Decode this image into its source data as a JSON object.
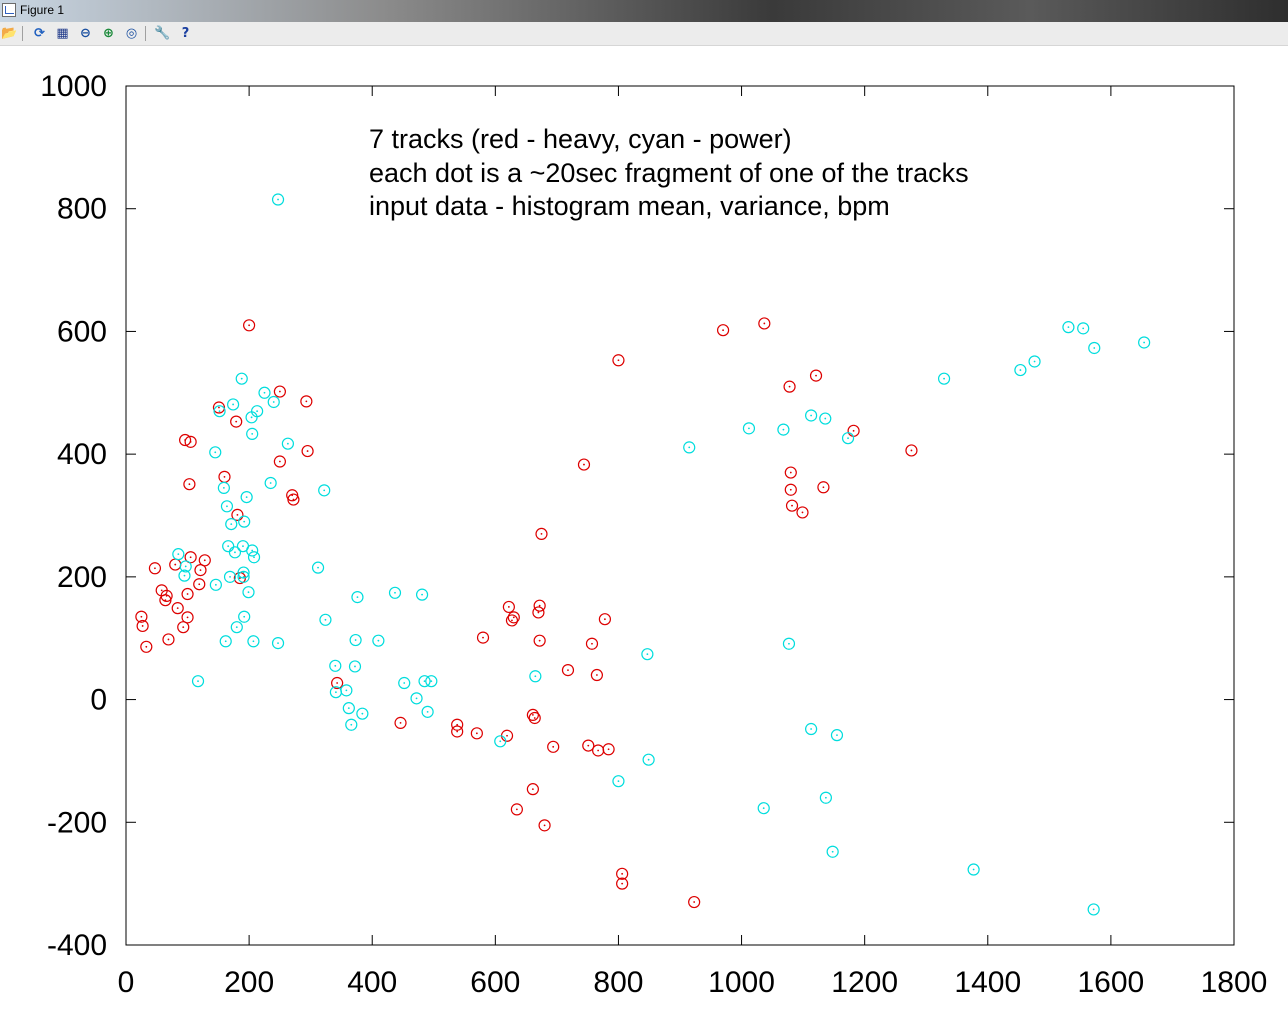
{
  "window": {
    "title": "Figure 1"
  },
  "toolbar": {
    "buttons": [
      {
        "name": "open-folder-icon",
        "glyph": "📂"
      },
      {
        "name": "rotate-icon",
        "glyph": "⟳"
      },
      {
        "name": "grid-icon",
        "glyph": "▦"
      },
      {
        "name": "zoom-out-icon",
        "glyph": "⊖"
      },
      {
        "name": "zoom-in-icon",
        "glyph": "⊕"
      },
      {
        "name": "zoom-fit-icon",
        "glyph": "◎"
      },
      {
        "name": "settings-wrench-icon",
        "glyph": "🔧"
      },
      {
        "name": "help-icon",
        "glyph": "?"
      }
    ]
  },
  "colors": {
    "heavy": "#dd0000",
    "power": "#00dddd",
    "axis": "#000000"
  },
  "chart_data": {
    "type": "scatter",
    "xlim": [
      0,
      1800
    ],
    "ylim": [
      -400,
      1000
    ],
    "xticks": [
      0,
      200,
      400,
      600,
      800,
      1000,
      1200,
      1400,
      1600,
      1800
    ],
    "yticks": [
      -400,
      -200,
      0,
      200,
      400,
      600,
      800,
      1000
    ],
    "xlabel": "",
    "ylabel": "",
    "grid": false,
    "annotation": [
      "7 tracks (red - heavy, cyan - power)",
      "each dot is a ~20sec fragment of one of the tracks",
      "input data - histogram mean, variance, bpm"
    ],
    "series": [
      {
        "color": "#dd0000",
        "points": [
          [
            25,
            135
          ],
          [
            27,
            120
          ],
          [
            33,
            86
          ],
          [
            47,
            214
          ],
          [
            58,
            178
          ],
          [
            64,
            162
          ],
          [
            66,
            169
          ],
          [
            69,
            98
          ],
          [
            80,
            220
          ],
          [
            84,
            149
          ],
          [
            93,
            118
          ],
          [
            96,
            423
          ],
          [
            100,
            134
          ],
          [
            100,
            172
          ],
          [
            103,
            351
          ],
          [
            105,
            420
          ],
          [
            105,
            232
          ],
          [
            119,
            188
          ],
          [
            121,
            211
          ],
          [
            128,
            227
          ],
          [
            151,
            476
          ],
          [
            160,
            363
          ],
          [
            179,
            453
          ],
          [
            181,
            301
          ],
          [
            185,
            198
          ],
          [
            200,
            610
          ],
          [
            250,
            502
          ],
          [
            250,
            388
          ],
          [
            270,
            333
          ],
          [
            272,
            326
          ],
          [
            293,
            486
          ],
          [
            295,
            405
          ],
          [
            343,
            27
          ],
          [
            446,
            -38
          ],
          [
            538,
            -41
          ],
          [
            538,
            -52
          ],
          [
            570,
            -55
          ],
          [
            580,
            101
          ],
          [
            619,
            -59
          ],
          [
            622,
            151
          ],
          [
            627,
            129
          ],
          [
            630,
            134
          ],
          [
            635,
            -179
          ],
          [
            661,
            -146
          ],
          [
            661,
            -25
          ],
          [
            664,
            -30
          ],
          [
            670,
            142
          ],
          [
            672,
            153
          ],
          [
            672,
            96
          ],
          [
            675,
            270
          ],
          [
            680,
            -205
          ],
          [
            694,
            -77
          ],
          [
            718,
            48
          ],
          [
            744,
            383
          ],
          [
            751,
            -75
          ],
          [
            757,
            91
          ],
          [
            765,
            40
          ],
          [
            767,
            -83
          ],
          [
            778,
            131
          ],
          [
            784,
            -81
          ],
          [
            800,
            553
          ],
          [
            806,
            -284
          ],
          [
            806,
            -300
          ],
          [
            923,
            -330
          ],
          [
            970,
            602
          ],
          [
            1037,
            613
          ],
          [
            1078,
            510
          ],
          [
            1080,
            370
          ],
          [
            1080,
            342
          ],
          [
            1082,
            316
          ],
          [
            1099,
            305
          ],
          [
            1121,
            528
          ],
          [
            1133,
            346
          ],
          [
            1182,
            438
          ],
          [
            1276,
            406
          ]
        ]
      },
      {
        "color": "#00dddd",
        "points": [
          [
            85,
            237
          ],
          [
            95,
            202
          ],
          [
            97,
            217
          ],
          [
            117,
            30
          ],
          [
            145,
            403
          ],
          [
            146,
            187
          ],
          [
            152,
            470
          ],
          [
            159,
            345
          ],
          [
            162,
            95
          ],
          [
            164,
            315
          ],
          [
            166,
            250
          ],
          [
            169,
            200
          ],
          [
            171,
            286
          ],
          [
            174,
            481
          ],
          [
            177,
            240
          ],
          [
            180,
            118
          ],
          [
            188,
            523
          ],
          [
            190,
            250
          ],
          [
            191,
            207
          ],
          [
            191,
            200
          ],
          [
            192,
            135
          ],
          [
            192,
            290
          ],
          [
            196,
            330
          ],
          [
            199,
            175
          ],
          [
            204,
            460
          ],
          [
            205,
            433
          ],
          [
            205,
            243
          ],
          [
            207,
            95
          ],
          [
            208,
            232
          ],
          [
            213,
            470
          ],
          [
            225,
            500
          ],
          [
            235,
            353
          ],
          [
            240,
            485
          ],
          [
            247,
            815
          ],
          [
            247,
            92
          ],
          [
            263,
            417
          ],
          [
            322,
            341
          ],
          [
            312,
            215
          ],
          [
            324,
            130
          ],
          [
            340,
            55
          ],
          [
            341,
            12
          ],
          [
            358,
            15
          ],
          [
            362,
            -14
          ],
          [
            366,
            -41
          ],
          [
            372,
            54
          ],
          [
            373,
            97
          ],
          [
            376,
            167
          ],
          [
            384,
            -23
          ],
          [
            410,
            96
          ],
          [
            437,
            174
          ],
          [
            452,
            27
          ],
          [
            472,
            2
          ],
          [
            481,
            171
          ],
          [
            485,
            30
          ],
          [
            490,
            -20
          ],
          [
            496,
            30
          ],
          [
            608,
            -68
          ],
          [
            665,
            38
          ],
          [
            800,
            -133
          ],
          [
            847,
            74
          ],
          [
            849,
            -98
          ],
          [
            915,
            411
          ],
          [
            1012,
            442
          ],
          [
            1036,
            -177
          ],
          [
            1068,
            440
          ],
          [
            1077,
            91
          ],
          [
            1113,
            463
          ],
          [
            1113,
            -48
          ],
          [
            1136,
            458
          ],
          [
            1137,
            -160
          ],
          [
            1148,
            -248
          ],
          [
            1155,
            -58
          ],
          [
            1173,
            426
          ],
          [
            1329,
            523
          ],
          [
            1377,
            -277
          ],
          [
            1453,
            537
          ],
          [
            1476,
            551
          ],
          [
            1531,
            607
          ],
          [
            1555,
            605
          ],
          [
            1572,
            -342
          ],
          [
            1573,
            573
          ],
          [
            1654,
            582
          ]
        ]
      }
    ]
  }
}
